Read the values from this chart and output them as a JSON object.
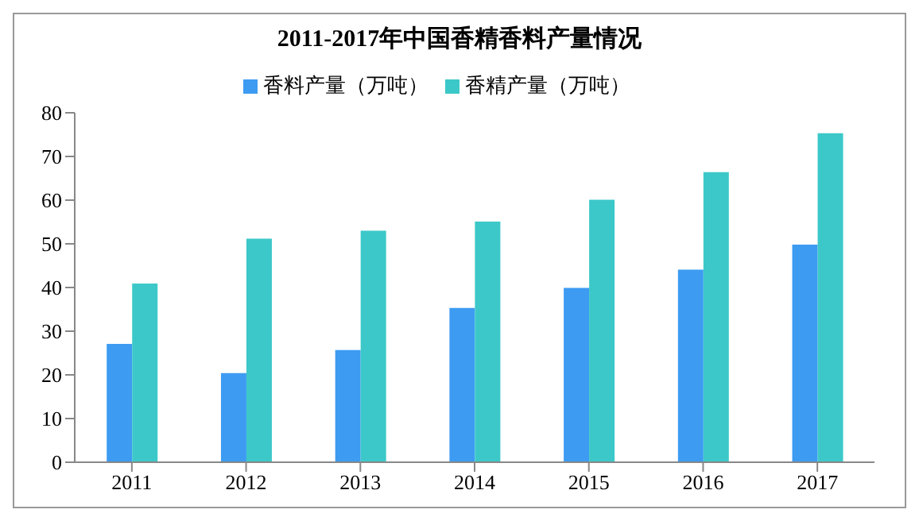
{
  "chart_data": {
    "type": "bar",
    "title": "2011-2017年中国香精香料产量情况",
    "categories": [
      "2011",
      "2012",
      "2013",
      "2014",
      "2015",
      "2016",
      "2017"
    ],
    "series": [
      {
        "name": "香料产量（万吨）",
        "color": "#3d9bf2",
        "values": [
          27.1,
          20.4,
          25.7,
          35.3,
          39.9,
          44.1,
          49.8
        ]
      },
      {
        "name": "香精产量（万吨）",
        "color": "#3cc8c8",
        "values": [
          40.9,
          51.2,
          53.0,
          55.1,
          60.1,
          66.4,
          75.3
        ]
      }
    ],
    "ylim": [
      0,
      80
    ],
    "yticks": [
      0,
      10,
      20,
      30,
      40,
      50,
      60,
      70,
      80
    ],
    "grid": false,
    "legend": "top"
  }
}
